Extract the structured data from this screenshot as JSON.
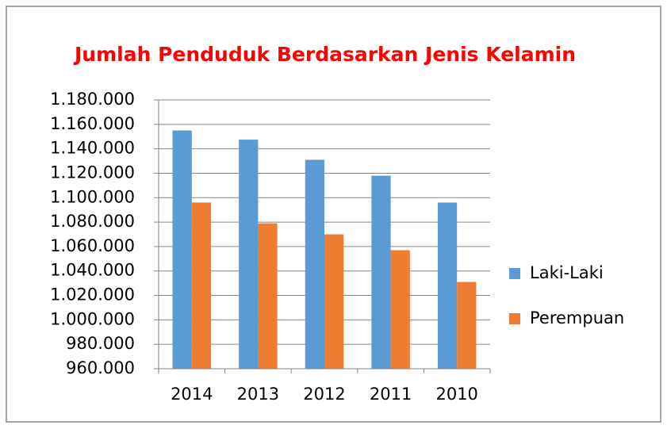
{
  "chart_data": {
    "type": "bar",
    "title": "Jumlah Penduduk Berdasarkan Jenis Kelamin",
    "categories": [
      "2014",
      "2013",
      "2012",
      "2011",
      "2010"
    ],
    "series": [
      {
        "name": "Laki-Laki",
        "color": "#5b9bd5",
        "values": [
          1155000,
          1147500,
          1131000,
          1118000,
          1096000
        ]
      },
      {
        "name": "Perempuan",
        "color": "#ed7d31",
        "values": [
          1096000,
          1079000,
          1070000,
          1057000,
          1031000
        ]
      }
    ],
    "ylim": [
      960000,
      1180000
    ],
    "yticks": [
      {
        "value": 960000,
        "label": "960.000"
      },
      {
        "value": 980000,
        "label": "980.000"
      },
      {
        "value": 1000000,
        "label": "1.000.000"
      },
      {
        "value": 1020000,
        "label": "1.020.000"
      },
      {
        "value": 1040000,
        "label": "1.040.000"
      },
      {
        "value": 1060000,
        "label": "1.060.000"
      },
      {
        "value": 1080000,
        "label": "1.080.000"
      },
      {
        "value": 1100000,
        "label": "1.100.000"
      },
      {
        "value": 1120000,
        "label": "1.120.000"
      },
      {
        "value": 1140000,
        "label": "1.140.000"
      },
      {
        "value": 1160000,
        "label": "1.160.000"
      },
      {
        "value": 1180000,
        "label": "1.180.000"
      }
    ],
    "grid": true,
    "legend": "right"
  }
}
